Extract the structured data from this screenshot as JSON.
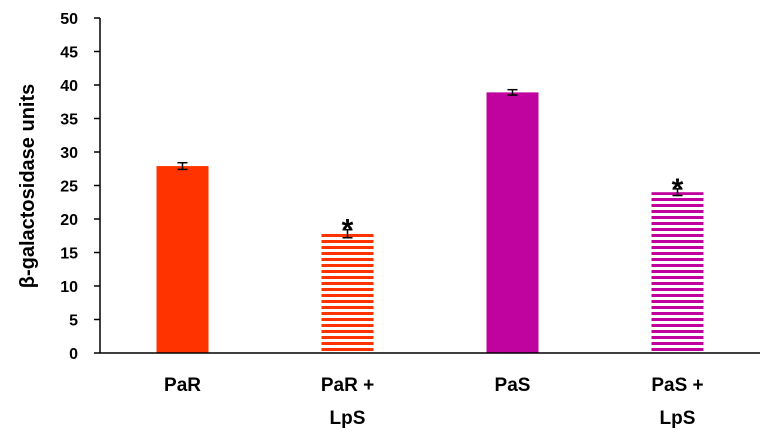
{
  "chart_data": {
    "type": "bar",
    "ylabel": "β-galactosidase units",
    "ylim": [
      0,
      50
    ],
    "yticks": [
      0,
      5,
      10,
      15,
      20,
      25,
      30,
      35,
      40,
      45,
      50
    ],
    "grid": false,
    "categories": [
      {
        "lines": [
          "PaR"
        ]
      },
      {
        "lines": [
          "PaR +",
          "LpS"
        ]
      },
      {
        "lines": [
          "PaS"
        ]
      },
      {
        "lines": [
          "PaS +",
          "LpS"
        ]
      }
    ],
    "values": [
      27.9,
      17.8,
      38.9,
      24.0
    ],
    "errors": [
      0.5,
      0.6,
      0.4,
      0.5
    ],
    "fill_styles": [
      "solid",
      "striped",
      "solid",
      "striped"
    ],
    "colors": [
      "#ff3300",
      "#ff3300",
      "#c0039e",
      "#c0039e"
    ],
    "annotations": [
      "",
      "*",
      "",
      "*"
    ]
  }
}
